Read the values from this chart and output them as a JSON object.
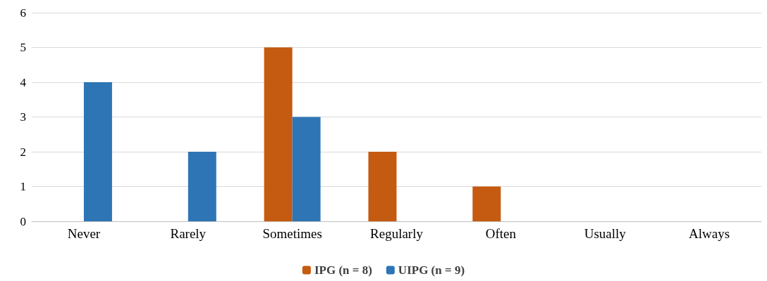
{
  "chart_data": {
    "type": "bar",
    "categories": [
      "Never",
      "Rarely",
      "Sometimes",
      "Regularly",
      "Often",
      "Usually",
      "Always"
    ],
    "series": [
      {
        "name": "IPG (n = 8)",
        "color": "#c55a11",
        "values": [
          0,
          0,
          5,
          2,
          1,
          0,
          0
        ]
      },
      {
        "name": "UIPG (n = 9)",
        "color": "#2e75b6",
        "values": [
          4,
          2,
          3,
          0,
          0,
          0,
          0
        ]
      }
    ],
    "ylim": [
      0,
      6
    ],
    "yticks": [
      0,
      1,
      2,
      3,
      4,
      5,
      6
    ],
    "grid": "y",
    "legend": "bottom"
  }
}
